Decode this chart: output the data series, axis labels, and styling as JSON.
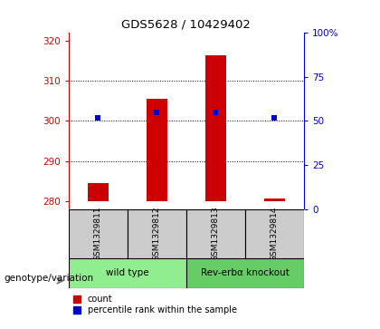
{
  "title": "GDS5628 / 10429402",
  "samples": [
    "GSM1329811",
    "GSM1329812",
    "GSM1329813",
    "GSM1329814"
  ],
  "group_labels": [
    "wild type",
    "Rev-erbα knockout"
  ],
  "group_colors": [
    "#90EE90",
    "#66CC66"
  ],
  "count_values": [
    284.5,
    305.5,
    316.5,
    280.5
  ],
  "percentile_values": [
    52,
    55,
    55,
    52
  ],
  "count_base": 280,
  "ylim_left": [
    278,
    322
  ],
  "ylim_right": [
    0,
    100
  ],
  "yticks_left": [
    280,
    290,
    300,
    310,
    320
  ],
  "yticks_right": [
    0,
    25,
    50,
    75,
    100
  ],
  "yticklabels_right": [
    "0",
    "25",
    "50",
    "75",
    "100%"
  ],
  "left_tick_color": "#cc0000",
  "right_tick_color": "#0000cc",
  "bar_color": "#cc0000",
  "blue_marker_color": "#0000cc",
  "bar_width": 0.35,
  "blue_marker_size": 5,
  "grid_ticks": [
    290,
    300,
    310
  ],
  "legend_items": [
    "count",
    "percentile rank within the sample"
  ],
  "genotype_label": "genotype/variation",
  "sample_box_color": "#cccccc"
}
